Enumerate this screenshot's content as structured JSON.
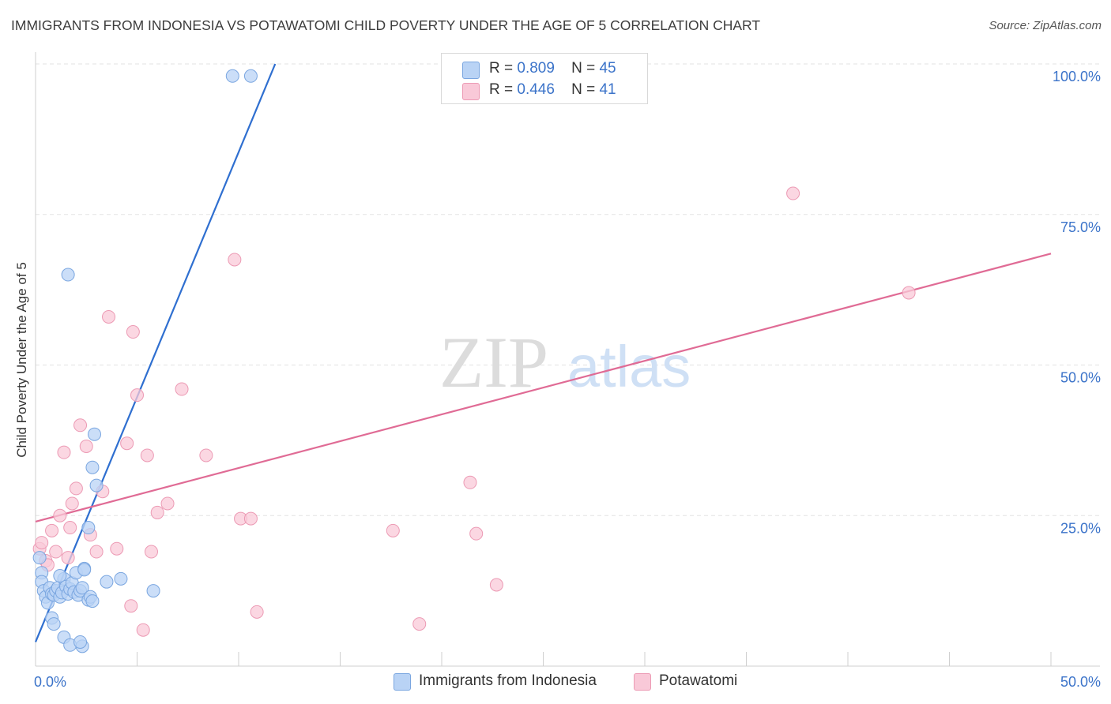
{
  "title": "IMMIGRANTS FROM INDONESIA VS POTAWATOMI CHILD POVERTY UNDER THE AGE OF 5 CORRELATION CHART",
  "source": "Source: ZipAtlas.com",
  "colors": {
    "blue_fill": "#b9d3f5",
    "blue_stroke": "#7aa6e0",
    "blue_line": "#2f6fd0",
    "pink_fill": "#f9c9d8",
    "pink_stroke": "#ec9ab4",
    "pink_line": "#e06b95",
    "tick_label": "#3b73c9",
    "grid": "#e3e3e3"
  },
  "legend": {
    "r_label": "R =",
    "n_label": "N =",
    "blue": {
      "r": "0.809",
      "n": "45"
    },
    "pink": {
      "r": "0.446",
      "n": "41"
    }
  },
  "watermark": {
    "zip": "ZIP",
    "atlas": "atlas"
  },
  "chart_data": {
    "type": "scatter",
    "title": "IMMIGRANTS FROM INDONESIA VS POTAWATOMI CHILD POVERTY UNDER THE AGE OF 5 CORRELATION CHART",
    "xlabel": "",
    "ylabel": "Child Poverty Under the Age of 5",
    "xlim": [
      0,
      50
    ],
    "ylim": [
      0,
      100
    ],
    "x_tick_labels": [
      {
        "value": 0,
        "label": "0.0%"
      },
      {
        "value": 50,
        "label": "50.0%"
      }
    ],
    "y_tick_labels": [
      {
        "value": 25,
        "label": "25.0%"
      },
      {
        "value": 50,
        "label": "50.0%"
      },
      {
        "value": 75,
        "label": "75.0%"
      },
      {
        "value": 100,
        "label": "100.0%"
      }
    ],
    "x_minor_ticks": [
      5,
      10,
      15,
      20,
      25,
      30,
      35,
      40,
      45,
      50
    ],
    "series": [
      {
        "name": "Immigrants from Indonesia",
        "color": "blue",
        "r": 0.809,
        "n": 45,
        "trendline": {
          "x1": 0.0,
          "y1": 4.0,
          "x2": 11.8,
          "y2": 100.0
        },
        "points": [
          [
            0.2,
            18.0
          ],
          [
            0.3,
            15.5
          ],
          [
            0.3,
            14.0
          ],
          [
            0.4,
            12.5
          ],
          [
            0.5,
            11.5
          ],
          [
            0.6,
            10.5
          ],
          [
            0.7,
            13.0
          ],
          [
            0.8,
            12.0
          ],
          [
            0.9,
            11.8
          ],
          [
            1.0,
            12.5
          ],
          [
            1.1,
            13.0
          ],
          [
            1.2,
            11.5
          ],
          [
            1.3,
            12.2
          ],
          [
            1.4,
            14.5
          ],
          [
            1.5,
            13.2
          ],
          [
            1.6,
            12.0
          ],
          [
            1.7,
            12.8
          ],
          [
            1.8,
            13.8
          ],
          [
            1.9,
            12.3
          ],
          [
            2.0,
            15.5
          ],
          [
            2.1,
            11.8
          ],
          [
            2.2,
            12.5
          ],
          [
            2.3,
            13.0
          ],
          [
            2.4,
            16.2
          ],
          [
            2.6,
            11.0
          ],
          [
            2.7,
            11.5
          ],
          [
            2.8,
            10.8
          ],
          [
            0.8,
            8.0
          ],
          [
            0.9,
            7.0
          ],
          [
            1.4,
            4.8
          ],
          [
            1.7,
            3.5
          ],
          [
            2.3,
            3.3
          ],
          [
            2.2,
            4.0
          ],
          [
            2.6,
            23.0
          ],
          [
            2.8,
            33.0
          ],
          [
            2.9,
            38.5
          ],
          [
            2.4,
            16.0
          ],
          [
            3.5,
            14.0
          ],
          [
            4.2,
            14.5
          ],
          [
            5.8,
            12.5
          ],
          [
            3.0,
            30.0
          ],
          [
            1.6,
            65.0
          ],
          [
            9.7,
            98.0
          ],
          [
            10.6,
            98.0
          ],
          [
            1.2,
            15.0
          ]
        ]
      },
      {
        "name": "Potawatomi",
        "color": "pink",
        "r": 0.446,
        "n": 41,
        "trendline": {
          "x1": 0.0,
          "y1": 24.0,
          "x2": 50.0,
          "y2": 68.5
        },
        "points": [
          [
            0.2,
            19.5
          ],
          [
            0.3,
            20.5
          ],
          [
            0.5,
            17.5
          ],
          [
            0.6,
            16.8
          ],
          [
            0.8,
            22.5
          ],
          [
            1.0,
            19.0
          ],
          [
            1.2,
            25.0
          ],
          [
            1.4,
            35.5
          ],
          [
            1.6,
            18.0
          ],
          [
            1.7,
            23.0
          ],
          [
            1.8,
            27.0
          ],
          [
            2.0,
            29.5
          ],
          [
            2.2,
            40.0
          ],
          [
            2.5,
            36.5
          ],
          [
            2.7,
            21.8
          ],
          [
            3.0,
            19.0
          ],
          [
            3.3,
            29.0
          ],
          [
            3.6,
            58.0
          ],
          [
            4.0,
            19.5
          ],
          [
            4.5,
            37.0
          ],
          [
            4.8,
            55.5
          ],
          [
            5.0,
            45.0
          ],
          [
            5.5,
            35.0
          ],
          [
            5.7,
            19.0
          ],
          [
            6.0,
            25.5
          ],
          [
            6.5,
            27.0
          ],
          [
            7.2,
            46.0
          ],
          [
            8.4,
            35.0
          ],
          [
            9.8,
            67.5
          ],
          [
            10.1,
            24.5
          ],
          [
            10.6,
            24.5
          ],
          [
            10.9,
            9.0
          ],
          [
            17.6,
            22.5
          ],
          [
            18.9,
            7.0
          ],
          [
            21.4,
            30.5
          ],
          [
            21.7,
            22.0
          ],
          [
            22.7,
            13.5
          ],
          [
            37.3,
            78.5
          ],
          [
            43.0,
            62.0
          ],
          [
            4.7,
            10.0
          ],
          [
            5.3,
            6.0
          ]
        ]
      }
    ]
  },
  "bottom_legend": {
    "blue_label": "Immigrants from Indonesia",
    "pink_label": "Potawatomi"
  }
}
